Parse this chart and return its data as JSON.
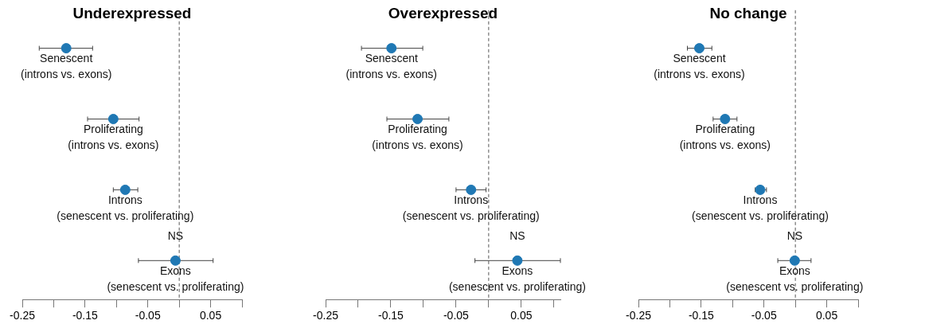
{
  "chart_data": [
    {
      "type": "scatter",
      "orientation": "horizontal",
      "title": "Underexpressed",
      "categories": [
        "Senescent\n(introns vs. exons)",
        "Proliferating\n(introns vs. exons)",
        "Introns\n(senescent vs. proliferating)",
        "Exons\n(senescent vs. proliferating)"
      ],
      "values": [
        -0.18,
        -0.105,
        -0.086,
        -0.006
      ],
      "errors": [
        [
          -0.223,
          -0.138
        ],
        [
          -0.146,
          -0.064
        ],
        [
          -0.105,
          -0.066
        ],
        [
          -0.065,
          0.054
        ]
      ],
      "color": "#1f78b4",
      "marker": "circle",
      "xlim": [
        -0.25,
        0.1
      ],
      "xticks": [
        -0.25,
        {
          "value": -0.2,
          "label": null
        },
        -0.15,
        {
          "value": -0.1,
          "label": null
        },
        -0.05,
        {
          "value": 0,
          "label": null
        },
        0.05,
        {
          "value": 0.1,
          "label": null
        }
      ],
      "ref_lines": [
        {
          "axis": "x",
          "value": 0,
          "line_style": "dashed"
        }
      ],
      "annotations": [
        {
          "text": "NS",
          "x": -0.006,
          "y": "Exons\n(senescent vs. proliferating)"
        }
      ],
      "tick_labels": "x",
      "grid": false
    },
    {
      "type": "scatter",
      "orientation": "horizontal",
      "title": "Overexpressed",
      "categories": [
        "Senescent\n(introns vs. exons)",
        "Proliferating\n(introns vs. exons)",
        "Introns\n(senescent vs. proliferating)",
        "Exons\n(senescent vs. proliferating)"
      ],
      "values": [
        -0.149,
        -0.109,
        -0.027,
        0.044
      ],
      "errors": [
        [
          -0.195,
          -0.101
        ],
        [
          -0.156,
          -0.061
        ],
        [
          -0.05,
          -0.004
        ],
        [
          -0.021,
          0.11
        ]
      ],
      "color": "#1f78b4",
      "marker": "circle",
      "xlim": [
        -0.25,
        0.11
      ],
      "xticks": [
        -0.25,
        {
          "value": -0.2,
          "label": null
        },
        -0.15,
        {
          "value": -0.1,
          "label": null
        },
        -0.05,
        {
          "value": 0,
          "label": null
        },
        0.05,
        {
          "value": 0.1,
          "label": null
        }
      ],
      "ref_lines": [
        {
          "axis": "x",
          "value": 0,
          "line_style": "dashed"
        }
      ],
      "annotations": [
        {
          "text": "NS",
          "x": 0.044,
          "y": "Exons\n(senescent vs. proliferating)"
        }
      ],
      "tick_labels": "x",
      "grid": false
    },
    {
      "type": "scatter",
      "orientation": "horizontal",
      "title": "No change",
      "categories": [
        "Senescent\n(introns vs. exons)",
        "Proliferating\n(introns vs. exons)",
        "Introns\n(senescent vs. proliferating)",
        "Exons\n(senescent vs. proliferating)"
      ],
      "values": [
        -0.153,
        -0.112,
        -0.056,
        -0.001
      ],
      "errors": [
        [
          -0.172,
          -0.133
        ],
        [
          -0.131,
          -0.093
        ],
        [
          -0.064,
          -0.046
        ],
        [
          -0.028,
          0.025
        ]
      ],
      "color": "#1f78b4",
      "marker": "circle",
      "xlim": [
        -0.25,
        0.1
      ],
      "xticks": [
        -0.25,
        {
          "value": -0.2,
          "label": null
        },
        -0.15,
        {
          "value": -0.1,
          "label": null
        },
        -0.05,
        {
          "value": 0,
          "label": null
        },
        0.05,
        {
          "value": 0.1,
          "label": null
        }
      ],
      "ref_lines": [
        {
          "axis": "x",
          "value": 0,
          "line_style": "dashed"
        }
      ],
      "annotations": [
        {
          "text": "NS",
          "x": -0.001,
          "y": "Exons\n(senescent vs. proliferating)"
        }
      ],
      "tick_labels": "x",
      "grid": false
    }
  ]
}
